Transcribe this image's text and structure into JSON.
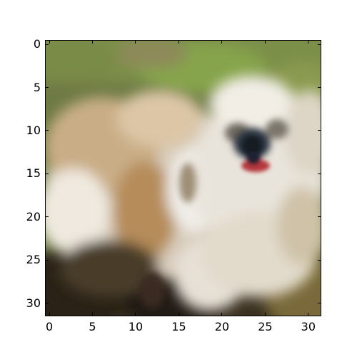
{
  "image": {
    "grid_size": 32,
    "interpolation": "bilinear",
    "colors": {
      "grass_dark": "#5d6a34",
      "grass_light": "#7f9a48",
      "fur_cream": "#e8ddcc",
      "fur_white": "#f2f0eb",
      "fur_tan": "#b58c5a",
      "fur_shadow": "#8f7c64",
      "nose_dark": "#1e2430",
      "mouth_red": "#b6393e",
      "ground_dark": "#2a2418",
      "ground_mid": "#6b5a36"
    }
  },
  "axes": {
    "x_ticks": [
      "0",
      "5",
      "10",
      "15",
      "20",
      "25",
      "30"
    ],
    "y_ticks": [
      "0",
      "5",
      "10",
      "15",
      "20",
      "25",
      "30"
    ],
    "x_tick_values": [
      0,
      5,
      10,
      15,
      20,
      25,
      30
    ],
    "y_tick_values": [
      0,
      5,
      10,
      15,
      20,
      25,
      30
    ],
    "xlim": [
      -0.5,
      31.5
    ],
    "ylim": [
      31.5,
      -0.5
    ]
  }
}
